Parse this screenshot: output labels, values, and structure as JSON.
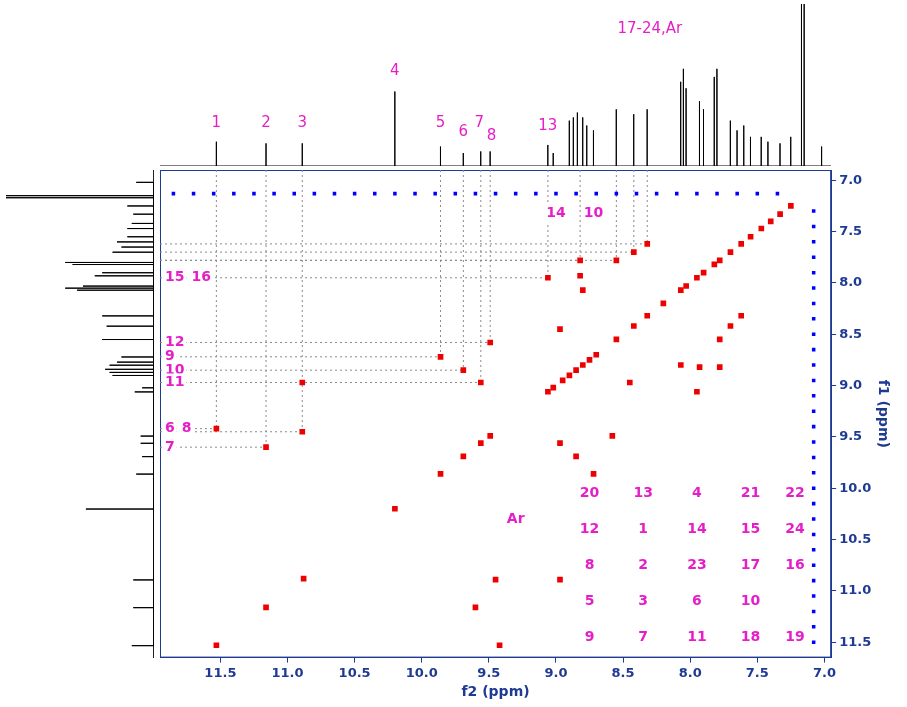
{
  "chart_data": {
    "type": "scatter",
    "x_label": "f2 (ppm)",
    "y_label": "f1 (ppm)",
    "xlim": [
      11.95,
      6.95
    ],
    "ylim": [
      6.9,
      11.65
    ],
    "xticks": [
      11.5,
      {
        "value": 11,
        "label": "11.0"
      },
      10.5,
      {
        "value": 10,
        "label": "10.0"
      },
      9.5,
      {
        "value": 9,
        "label": "9.0"
      },
      8.5,
      {
        "value": 8,
        "label": "8.0"
      },
      7.5,
      {
        "value": 7,
        "label": "7.0"
      }
    ],
    "yticks": [
      {
        "value": 7,
        "label": "7.0"
      },
      7.5,
      {
        "value": 8,
        "label": "8.0"
      },
      8.5,
      {
        "value": 9,
        "label": "9.0"
      },
      9.5,
      {
        "value": 10,
        "label": "10.0"
      },
      10.5,
      {
        "value": 11,
        "label": "11.0"
      },
      11.5
    ],
    "grid": false,
    "series": [
      {
        "color": "#ee0000",
        "marker": "square",
        "points": [
          [
            11.53,
            11.53
          ],
          [
            11.16,
            11.16
          ],
          [
            10.88,
            10.88
          ],
          [
            10.2,
            10.2
          ],
          [
            9.86,
            9.86
          ],
          [
            9.69,
            9.69
          ],
          [
            9.56,
            9.56
          ],
          [
            9.49,
            9.49
          ],
          [
            9.06,
            9.06
          ],
          [
            9.02,
            9.02
          ],
          [
            8.95,
            8.95
          ],
          [
            8.9,
            8.9
          ],
          [
            8.85,
            8.85
          ],
          [
            8.8,
            8.8
          ],
          [
            8.75,
            8.75
          ],
          [
            8.7,
            8.7
          ],
          [
            8.55,
            8.55
          ],
          [
            8.42,
            8.42
          ],
          [
            8.32,
            8.32
          ],
          [
            8.2,
            8.2
          ],
          [
            8.07,
            8.07
          ],
          [
            8.03,
            8.03
          ],
          [
            7.95,
            7.95
          ],
          [
            7.9,
            7.9
          ],
          [
            7.82,
            7.82
          ],
          [
            7.78,
            7.78
          ],
          [
            7.7,
            7.7
          ],
          [
            7.62,
            7.62
          ],
          [
            7.55,
            7.55
          ],
          [
            7.47,
            7.47
          ],
          [
            7.4,
            7.4
          ],
          [
            7.33,
            7.33
          ],
          [
            7.25,
            7.25
          ],
          [
            11.53,
            9.42
          ],
          [
            11.16,
            9.6
          ],
          [
            10.89,
            9.45
          ],
          [
            10.89,
            8.97
          ],
          [
            9.86,
            8.72
          ],
          [
            9.69,
            8.85
          ],
          [
            9.56,
            8.97
          ],
          [
            9.49,
            8.58
          ],
          [
            9.06,
            7.95
          ],
          [
            8.82,
            7.78
          ],
          [
            8.82,
            7.93
          ],
          [
            8.55,
            7.78
          ],
          [
            8.42,
            7.7
          ],
          [
            8.32,
            7.62
          ],
          [
            8.97,
            8.45
          ],
          [
            8.8,
            8.07
          ],
          [
            9.42,
            11.53
          ],
          [
            9.6,
            11.16
          ],
          [
            9.45,
            10.89
          ],
          [
            8.97,
            10.89
          ],
          [
            8.72,
            9.86
          ],
          [
            8.85,
            9.69
          ],
          [
            8.97,
            9.56
          ],
          [
            8.58,
            9.49
          ],
          [
            7.95,
            9.06
          ],
          [
            7.78,
            8.82
          ],
          [
            7.93,
            8.82
          ],
          [
            7.78,
            8.55
          ],
          [
            7.7,
            8.42
          ],
          [
            7.62,
            8.32
          ],
          [
            8.45,
            8.97
          ],
          [
            8.07,
            8.8
          ]
        ]
      },
      {
        "color": "#0000ff",
        "marker": "square",
        "points": [
          [
            11.85,
            7.13
          ],
          [
            11.7,
            7.13
          ],
          [
            11.55,
            7.13
          ],
          [
            11.4,
            7.13
          ],
          [
            11.25,
            7.13
          ],
          [
            11.1,
            7.13
          ],
          [
            10.95,
            7.13
          ],
          [
            10.8,
            7.13
          ],
          [
            10.65,
            7.13
          ],
          [
            10.5,
            7.13
          ],
          [
            10.35,
            7.13
          ],
          [
            10.2,
            7.13
          ],
          [
            10.05,
            7.13
          ],
          [
            9.9,
            7.13
          ],
          [
            9.75,
            7.13
          ],
          [
            9.6,
            7.13
          ],
          [
            9.45,
            7.13
          ],
          [
            9.3,
            7.13
          ],
          [
            9.15,
            7.13
          ],
          [
            9.0,
            7.13
          ],
          [
            8.85,
            7.13
          ],
          [
            8.7,
            7.13
          ],
          [
            8.55,
            7.13
          ],
          [
            8.4,
            7.13
          ],
          [
            8.25,
            7.13
          ],
          [
            8.1,
            7.13
          ],
          [
            7.95,
            7.13
          ],
          [
            7.8,
            7.13
          ],
          [
            7.65,
            7.13
          ],
          [
            7.5,
            7.13
          ],
          [
            7.35,
            7.13
          ],
          [
            7.08,
            7.3
          ],
          [
            7.08,
            7.45
          ],
          [
            7.08,
            7.6
          ],
          [
            7.08,
            7.75
          ],
          [
            7.08,
            7.9
          ],
          [
            7.08,
            8.05
          ],
          [
            7.08,
            8.2
          ],
          [
            7.08,
            8.35
          ],
          [
            7.08,
            8.5
          ],
          [
            7.08,
            8.65
          ],
          [
            7.08,
            8.8
          ],
          [
            7.08,
            8.95
          ],
          [
            7.08,
            9.1
          ],
          [
            7.08,
            9.25
          ],
          [
            7.08,
            9.4
          ],
          [
            7.08,
            9.55
          ],
          [
            7.08,
            9.7
          ],
          [
            7.08,
            9.85
          ],
          [
            7.08,
            10.0
          ],
          [
            7.08,
            10.15
          ],
          [
            7.08,
            10.3
          ],
          [
            7.08,
            10.45
          ],
          [
            7.08,
            10.6
          ],
          [
            7.08,
            10.75
          ],
          [
            7.08,
            10.9
          ],
          [
            7.08,
            11.05
          ],
          [
            7.08,
            11.2
          ],
          [
            7.08,
            11.35
          ],
          [
            7.08,
            11.5
          ]
        ]
      }
    ],
    "projection": {
      "color": "#000000",
      "lim": [
        0,
        100
      ],
      "x": [
        11.53,
        11.16,
        10.89,
        10.2,
        9.86,
        9.69,
        9.56,
        9.49,
        9.06,
        9.02,
        8.9,
        8.87,
        8.84,
        8.8,
        8.77,
        8.72,
        8.55,
        8.42,
        8.32,
        8.07,
        8.05,
        8.03,
        7.93,
        7.9,
        7.82,
        7.8,
        7.7,
        7.65,
        7.6,
        7.55,
        7.47,
        7.42,
        7.33,
        7.25,
        7.17,
        7.15,
        7.02
      ],
      "values": [
        15,
        14,
        14,
        46,
        12,
        8,
        9,
        9,
        13,
        8,
        28,
        30,
        33,
        30,
        25,
        22,
        35,
        32,
        35,
        52,
        60,
        48,
        40,
        35,
        55,
        60,
        28,
        22,
        25,
        18,
        18,
        15,
        14,
        18,
        120,
        120,
        12
      ]
    },
    "top_labels": [
      {
        "text": "1",
        "x": 11.53,
        "y": 22
      },
      {
        "text": "2",
        "x": 11.16,
        "y": 22
      },
      {
        "text": "3",
        "x": 10.89,
        "y": 22
      },
      {
        "text": "4",
        "x": 10.2,
        "y": 54
      },
      {
        "text": "5",
        "x": 9.86,
        "y": 22
      },
      {
        "text": "6",
        "x": 9.69,
        "y": 16
      },
      {
        "text": "7",
        "x": 9.57,
        "y": 22
      },
      {
        "text": "8",
        "x": 9.48,
        "y": 14
      },
      {
        "text": "13",
        "x": 9.06,
        "y": 20
      },
      {
        "text": "17-24,Ar",
        "x": 8.3,
        "y": 80
      }
    ],
    "left_labels": [
      {
        "text": "15",
        "y": 7.95
      },
      {
        "text": "16",
        "y": 7.95
      },
      {
        "text": "12",
        "y": 8.58
      },
      {
        "text": "9",
        "y": 8.72
      },
      {
        "text": "10",
        "y": 8.85
      },
      {
        "text": "11",
        "y": 8.97
      },
      {
        "text": "6",
        "y": 9.42
      },
      {
        "text": "8",
        "y": 9.42
      },
      {
        "text": "7",
        "y": 9.6
      }
    ],
    "guides": [
      {
        "x": 11.53,
        "y": 9.42
      },
      {
        "x": 11.16,
        "y": 9.6
      },
      {
        "x": 10.89,
        "y": 9.45
      },
      {
        "x": 9.86,
        "y": 8.72
      },
      {
        "x": 9.69,
        "y": 8.85
      },
      {
        "x": 9.56,
        "y": 8.97
      },
      {
        "x": 9.49,
        "y": 8.58
      },
      {
        "x": 9.06,
        "y": 7.95
      },
      {
        "x": 8.82,
        "y": 7.78
      },
      {
        "x": 8.55,
        "y": 7.78
      },
      {
        "x": 8.42,
        "y": 7.7
      },
      {
        "x": 8.32,
        "y": 7.62
      }
    ],
    "annotations": [
      {
        "text": "14",
        "x": 9.0,
        "y": 7.32
      },
      {
        "text": "10",
        "x": 8.72,
        "y": 7.32
      },
      {
        "text": "Ar",
        "x": 9.3,
        "y": 10.3
      },
      {
        "text": "20",
        "x": 8.75,
        "y": 10.05
      },
      {
        "text": "13",
        "x": 8.35,
        "y": 10.05
      },
      {
        "text": "4",
        "x": 7.95,
        "y": 10.05
      },
      {
        "text": "21",
        "x": 7.55,
        "y": 10.05
      },
      {
        "text": "22",
        "x": 7.22,
        "y": 10.05
      },
      {
        "text": "12",
        "x": 8.75,
        "y": 10.4
      },
      {
        "text": "1",
        "x": 8.35,
        "y": 10.4
      },
      {
        "text": "14",
        "x": 7.95,
        "y": 10.4
      },
      {
        "text": "15",
        "x": 7.55,
        "y": 10.4
      },
      {
        "text": "24",
        "x": 7.22,
        "y": 10.4
      },
      {
        "text": "8",
        "x": 8.75,
        "y": 10.75
      },
      {
        "text": "2",
        "x": 8.35,
        "y": 10.75
      },
      {
        "text": "23",
        "x": 7.95,
        "y": 10.75
      },
      {
        "text": "17",
        "x": 7.55,
        "y": 10.75
      },
      {
        "text": "16",
        "x": 7.22,
        "y": 10.75
      },
      {
        "text": "5",
        "x": 8.75,
        "y": 11.1
      },
      {
        "text": "3",
        "x": 8.35,
        "y": 11.1
      },
      {
        "text": "6",
        "x": 7.95,
        "y": 11.1
      },
      {
        "text": "10",
        "x": 7.55,
        "y": 11.1
      },
      {
        "text": "9",
        "x": 8.75,
        "y": 11.45
      },
      {
        "text": "7",
        "x": 8.35,
        "y": 11.45
      },
      {
        "text": "11",
        "x": 7.95,
        "y": 11.45
      },
      {
        "text": "18",
        "x": 7.55,
        "y": 11.45
      },
      {
        "text": "19",
        "x": 7.22,
        "y": 11.45
      }
    ]
  }
}
